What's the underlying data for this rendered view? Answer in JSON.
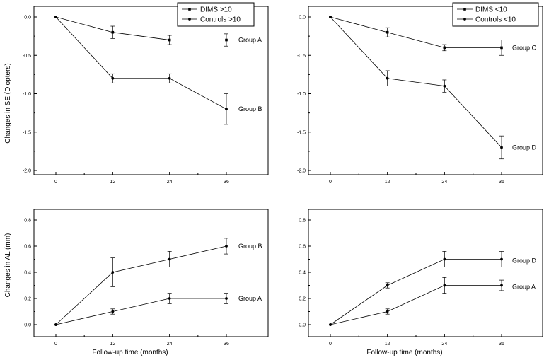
{
  "figure": {
    "ylabel_top": "Changes in SE (Diopters)",
    "ylabel_bottom": "Changes in AL (mm)",
    "xlabel_bottom": "Follow-up time (months)"
  },
  "chart_data": [
    {
      "type": "line",
      "id": "se-high",
      "x": [
        0,
        12,
        24,
        36
      ],
      "xticks": [
        "0",
        "12",
        "24",
        "36"
      ],
      "ylim": [
        -2.0,
        0.0
      ],
      "yticks": [
        "0.0",
        "-0.5",
        "-1.0",
        "-1.5",
        "-2.0"
      ],
      "ylabel": "Changes in SE (Diopters)",
      "xlabel": "",
      "legend": [
        "DIMS >10",
        "Controls >10"
      ],
      "legend_position": "top-right",
      "series": [
        {
          "name": "DIMS >10",
          "marker": "square",
          "group_label": "Group A",
          "values": [
            0.0,
            -0.2,
            -0.3,
            -0.3
          ],
          "errors": [
            0.0,
            0.08,
            0.06,
            0.08
          ]
        },
        {
          "name": "Controls >10",
          "marker": "circle",
          "group_label": "Group B",
          "values": [
            0.0,
            -0.8,
            -0.8,
            -1.2
          ],
          "errors": [
            0.0,
            0.06,
            0.06,
            0.2
          ]
        }
      ]
    },
    {
      "type": "line",
      "id": "se-low",
      "x": [
        0,
        12,
        24,
        36
      ],
      "xticks": [
        "0",
        "12",
        "24",
        "36"
      ],
      "ylim": [
        -2.0,
        0.0
      ],
      "yticks": [
        "0.0",
        "-0.5",
        "-1.0",
        "-1.5",
        "-2.0"
      ],
      "ylabel": "",
      "xlabel": "",
      "legend": [
        "DIMS <10",
        "Controls <10"
      ],
      "legend_position": "top-right",
      "series": [
        {
          "name": "DIMS <10",
          "marker": "square",
          "group_label": "Group C",
          "values": [
            0.0,
            -0.2,
            -0.4,
            -0.4
          ],
          "errors": [
            0.0,
            0.06,
            0.04,
            0.1
          ]
        },
        {
          "name": "Controls <10",
          "marker": "circle",
          "group_label": "Group D",
          "values": [
            0.0,
            -0.8,
            -0.9,
            -1.7
          ],
          "errors": [
            0.0,
            0.1,
            0.08,
            0.15
          ]
        }
      ]
    },
    {
      "type": "line",
      "id": "al-high",
      "x": [
        0,
        12,
        24,
        36
      ],
      "xticks": [
        "0",
        "12",
        "24",
        "36"
      ],
      "ylim": [
        0.0,
        0.8
      ],
      "yticks": [
        "0.0",
        "0.2",
        "0.4",
        "0.6",
        "0.8"
      ],
      "ylabel": "Changes in AL (mm)",
      "xlabel": "Follow-up time (months)",
      "series": [
        {
          "marker": "circle",
          "group_label": "Group B",
          "values": [
            0.0,
            0.4,
            0.5,
            0.6
          ],
          "errors": [
            0.0,
            0.11,
            0.06,
            0.06
          ]
        },
        {
          "marker": "circle",
          "group_label": "Group A",
          "values": [
            0.0,
            0.1,
            0.2,
            0.2
          ],
          "errors": [
            0.0,
            0.02,
            0.04,
            0.04
          ]
        }
      ]
    },
    {
      "type": "line",
      "id": "al-low",
      "x": [
        0,
        12,
        24,
        36
      ],
      "xticks": [
        "0",
        "12",
        "24",
        "36"
      ],
      "ylim": [
        0.0,
        0.8
      ],
      "yticks": [
        "0.0",
        "0.2",
        "0.4",
        "0.6",
        "0.8"
      ],
      "ylabel": "",
      "xlabel": "Follow-up time (months)",
      "series": [
        {
          "marker": "circle",
          "group_label": "Group D",
          "values": [
            0.0,
            0.3,
            0.5,
            0.5
          ],
          "errors": [
            0.0,
            0.02,
            0.06,
            0.06
          ]
        },
        {
          "marker": "circle",
          "group_label": "Group A",
          "values": [
            0.0,
            0.1,
            0.3,
            0.3
          ],
          "errors": [
            0.0,
            0.02,
            0.06,
            0.04
          ]
        }
      ]
    }
  ]
}
